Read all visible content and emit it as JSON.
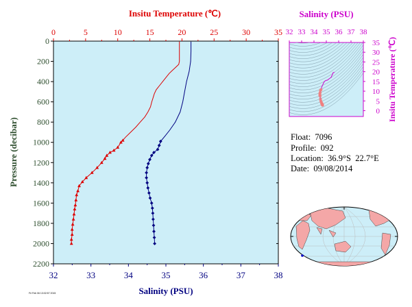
{
  "chart_data": [
    {
      "type": "line",
      "x_top_label": "Insitu Temperature (℃)",
      "x_bottom_label": "Salinity (PSU)",
      "ylabel": "Pressure (decibar)",
      "temperature_axis": {
        "range": [
          0,
          35
        ],
        "ticks": [
          "0",
          "5",
          "10",
          "15",
          "20",
          "25",
          "30",
          "35"
        ],
        "color": "#dd0000"
      },
      "salinity_axis": {
        "range": [
          32,
          38
        ],
        "ticks": [
          "32",
          "33",
          "34",
          "35",
          "36",
          "37",
          "38"
        ],
        "color": "#000080"
      },
      "pressure_axis": {
        "range": [
          0,
          2200
        ],
        "reversed": true,
        "ticks": [
          "0",
          "200",
          "400",
          "600",
          "800",
          "1000",
          "1200",
          "1400",
          "1600",
          "1800",
          "2000",
          "2200"
        ]
      },
      "series": [
        {
          "color": "#dd0000",
          "continuous_temp": [
            [
              19.6,
              5
            ],
            [
              19.6,
              60
            ],
            [
              19.6,
              100
            ],
            [
              19.6,
              150
            ],
            [
              19.6,
              200
            ],
            [
              19.5,
              230
            ],
            [
              19,
              260
            ],
            [
              18.5,
              290
            ],
            [
              18,
              320
            ],
            [
              17.5,
              360
            ],
            [
              17,
              400
            ],
            [
              16.5,
              440
            ],
            [
              16,
              480
            ],
            [
              15.7,
              520
            ],
            [
              15.5,
              560
            ],
            [
              15.3,
              600
            ],
            [
              15.1,
              650
            ],
            [
              14.7,
              700
            ],
            [
              14.2,
              750
            ],
            [
              13.5,
              800
            ],
            [
              12.8,
              850
            ],
            [
              12.0,
              900
            ],
            [
              11.2,
              950
            ],
            [
              10.8,
              980
            ]
          ],
          "samples_temp": [
            [
              10.8,
              980
            ],
            [
              10.5,
              1000
            ],
            [
              10,
              1050
            ],
            [
              9.4,
              1080
            ],
            [
              8.8,
              1100
            ],
            [
              8.3,
              1130
            ],
            [
              8.0,
              1160
            ],
            [
              7.5,
              1200
            ],
            [
              6.8,
              1250
            ],
            [
              6.0,
              1300
            ],
            [
              5.1,
              1350
            ],
            [
              4.5,
              1390
            ],
            [
              4.0,
              1430
            ],
            [
              3.8,
              1480
            ],
            [
              3.6,
              1520
            ],
            [
              3.5,
              1570
            ],
            [
              3.4,
              1620
            ],
            [
              3.3,
              1660
            ],
            [
              3.2,
              1710
            ],
            [
              3.1,
              1760
            ],
            [
              3.0,
              1810
            ],
            [
              2.9,
              1860
            ],
            [
              2.9,
              1910
            ],
            [
              2.8,
              1960
            ],
            [
              2.8,
              2000
            ]
          ]
        },
        {
          "color": "#000080",
          "continuous_sal": [
            [
              35.67,
              5
            ],
            [
              35.67,
              100
            ],
            [
              35.66,
              200
            ],
            [
              35.62,
              300
            ],
            [
              35.55,
              400
            ],
            [
              35.5,
              500
            ],
            [
              35.45,
              600
            ],
            [
              35.38,
              700
            ],
            [
              35.25,
              800
            ],
            [
              35.1,
              880
            ],
            [
              34.97,
              940
            ],
            [
              34.86,
              990
            ]
          ],
          "samples_sal": [
            [
              34.86,
              990
            ],
            [
              34.82,
              1030
            ],
            [
              34.78,
              1070
            ],
            [
              34.68,
              1100
            ],
            [
              34.62,
              1130
            ],
            [
              34.57,
              1170
            ],
            [
              34.53,
              1210
            ],
            [
              34.5,
              1250
            ],
            [
              34.48,
              1300
            ],
            [
              34.48,
              1350
            ],
            [
              34.5,
              1400
            ],
            [
              34.52,
              1450
            ],
            [
              34.55,
              1500
            ],
            [
              34.58,
              1550
            ],
            [
              34.62,
              1600
            ],
            [
              34.64,
              1650
            ],
            [
              34.65,
              1700
            ],
            [
              34.66,
              1760
            ],
            [
              34.67,
              1820
            ],
            [
              34.68,
              1880
            ],
            [
              34.69,
              1940
            ],
            [
              34.7,
              2000
            ]
          ]
        }
      ]
    },
    {
      "type": "scatter",
      "xlabel": "Salinity (PSU)",
      "ylabel": "Insitu Temperature (℃)",
      "xlim": [
        32,
        38
      ],
      "ylim": [
        -3,
        35
      ],
      "x_ticks": [
        "32",
        "33",
        "34",
        "35",
        "36",
        "37",
        "38"
      ],
      "y_ticks": [
        "0",
        "5",
        "10",
        "15",
        "20",
        "25",
        "30",
        "35"
      ],
      "color": "#cc00cc"
    }
  ],
  "info": {
    "float": "Float:  7096",
    "profile": "Profile:  092",
    "location": "Location:  36.9°S  22.7°E",
    "date": "Date:  09/08/2014"
  },
  "footer_text": "Fri Feb 06 13:02:57 2015"
}
